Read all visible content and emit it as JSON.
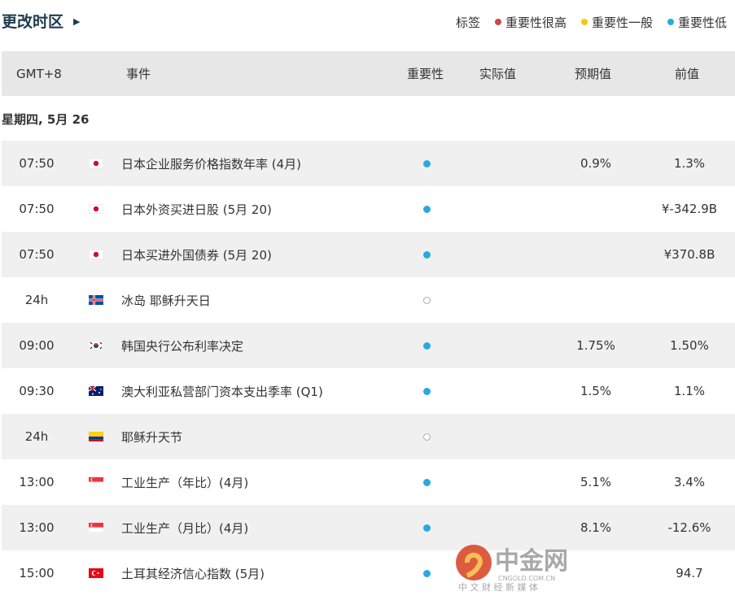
{
  "header": {
    "timezone_label": "更改时区",
    "legend_label": "标签",
    "legend": [
      {
        "label": "重要性很高",
        "color": "#c94a4a"
      },
      {
        "label": "重要性一般",
        "color": "#f2c811"
      },
      {
        "label": "重要性低",
        "color": "#2aa9e0"
      }
    ]
  },
  "table": {
    "columns": [
      "GMT+8",
      "事件",
      "重要性",
      "实际值",
      "预期值",
      "前值"
    ],
    "date": "星期四, 5月 26",
    "rows": [
      {
        "time": "07:50",
        "flag": "japan",
        "event": "日本企业服务价格指数年率 (4月)",
        "importance": "low",
        "actual": "",
        "forecast": "0.9%",
        "previous": "1.3%"
      },
      {
        "time": "07:50",
        "flag": "japan",
        "event": "日本外资买进日股 (5月 20)",
        "importance": "low",
        "actual": "",
        "forecast": "",
        "previous": "¥-342.9B"
      },
      {
        "time": "07:50",
        "flag": "japan",
        "event": "日本买进外国债券 (5月 20)",
        "importance": "low",
        "actual": "",
        "forecast": "",
        "previous": "¥370.8B"
      },
      {
        "time": "24h",
        "flag": "iceland",
        "event": "冰岛 耶稣升天日",
        "importance": "holiday",
        "actual": "",
        "forecast": "",
        "previous": ""
      },
      {
        "time": "09:00",
        "flag": "south-korea",
        "event": "韩国央行公布利率决定",
        "importance": "low",
        "actual": "",
        "forecast": "1.75%",
        "previous": "1.50%"
      },
      {
        "time": "09:30",
        "flag": "australia",
        "event": "澳大利亚私营部门资本支出季率 (Q1)",
        "importance": "low",
        "actual": "",
        "forecast": "1.5%",
        "previous": "1.1%"
      },
      {
        "time": "24h",
        "flag": "colombia",
        "event": "耶稣升天节",
        "importance": "holiday",
        "actual": "",
        "forecast": "",
        "previous": ""
      },
      {
        "time": "13:00",
        "flag": "singapore",
        "event": "工业生产（年比）(4月)",
        "importance": "low",
        "actual": "",
        "forecast": "5.1%",
        "previous": "3.4%"
      },
      {
        "time": "13:00",
        "flag": "singapore",
        "event": "工业生产（月比）(4月)",
        "importance": "low",
        "actual": "",
        "forecast": "8.1%",
        "previous": "-12.6%"
      },
      {
        "time": "15:00",
        "flag": "turkey",
        "event": "土耳其经济信心指数 (5月)",
        "importance": "low",
        "actual": "",
        "forecast": "",
        "previous": "94.7"
      }
    ]
  },
  "watermark": {
    "name": "中金网",
    "url": "CNGOLD.COM.CN",
    "tagline": "中 文 财 经 新 媒 体"
  }
}
